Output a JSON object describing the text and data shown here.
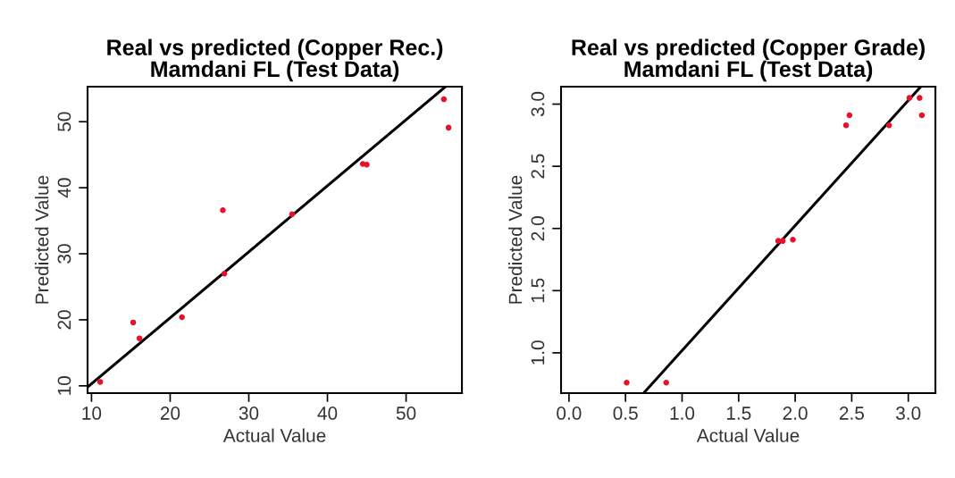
{
  "chart_data": [
    {
      "type": "scatter",
      "title": "Real vs predicted (Copper Rec.)\nMamdani FL (Test Data)",
      "xlabel": "Actual Value",
      "ylabel": "Predicted Value",
      "xlim": [
        9.5,
        57.1
      ],
      "ylim": [
        8.9,
        55.3
      ],
      "xticks": [
        10,
        20,
        30,
        40,
        50
      ],
      "yticks": [
        10,
        20,
        30,
        40,
        50
      ],
      "grid": false,
      "series": [
        {
          "color": "#e8102a",
          "marker": "circle",
          "x": [
            11.1,
            15.3,
            16.1,
            21.5,
            26.7,
            26.9,
            35.5,
            44.5,
            45.0,
            54.8,
            55.4
          ],
          "values": [
            10.6,
            19.6,
            17.2,
            20.4,
            36.6,
            27.0,
            36.0,
            43.6,
            43.5,
            53.4,
            49.1
          ]
        },
        {
          "type": "line",
          "color": "#000000",
          "x": [
            9.5,
            55.0
          ],
          "values": [
            9.8,
            55.3
          ]
        }
      ]
    },
    {
      "type": "scatter",
      "title": "Real vs predicted (Copper Grade)\nMamdani FL (Test Data)",
      "xlabel": "Actual Value",
      "ylabel": "Predicted Value",
      "xlim": [
        -0.07,
        3.24
      ],
      "ylim": [
        0.676,
        3.14
      ],
      "xticks": [
        {
          "value": 0,
          "label": "0.0"
        },
        0.5,
        {
          "value": 1,
          "label": "1.0"
        },
        1.5,
        {
          "value": 2,
          "label": "2.0"
        },
        2.5,
        {
          "value": 3,
          "label": "3.0"
        }
      ],
      "yticks": [
        {
          "value": 1,
          "label": "1.0"
        },
        1.5,
        {
          "value": 2,
          "label": "2.0"
        },
        2.5,
        {
          "value": 3,
          "label": "3.0"
        }
      ],
      "grid": false,
      "series": [
        {
          "color": "#e8102a",
          "marker": "circle",
          "x": [
            0.51,
            0.86,
            1.85,
            1.89,
            1.98,
            2.45,
            2.48,
            2.83,
            3.01,
            3.1,
            3.12
          ],
          "values": [
            0.76,
            0.76,
            1.9,
            1.9,
            1.91,
            2.83,
            2.91,
            2.83,
            3.05,
            3.05,
            2.91
          ]
        },
        {
          "type": "line",
          "color": "#000000",
          "x": [
            0.66,
            3.11
          ],
          "values": [
            0.676,
            3.14
          ]
        }
      ]
    }
  ]
}
